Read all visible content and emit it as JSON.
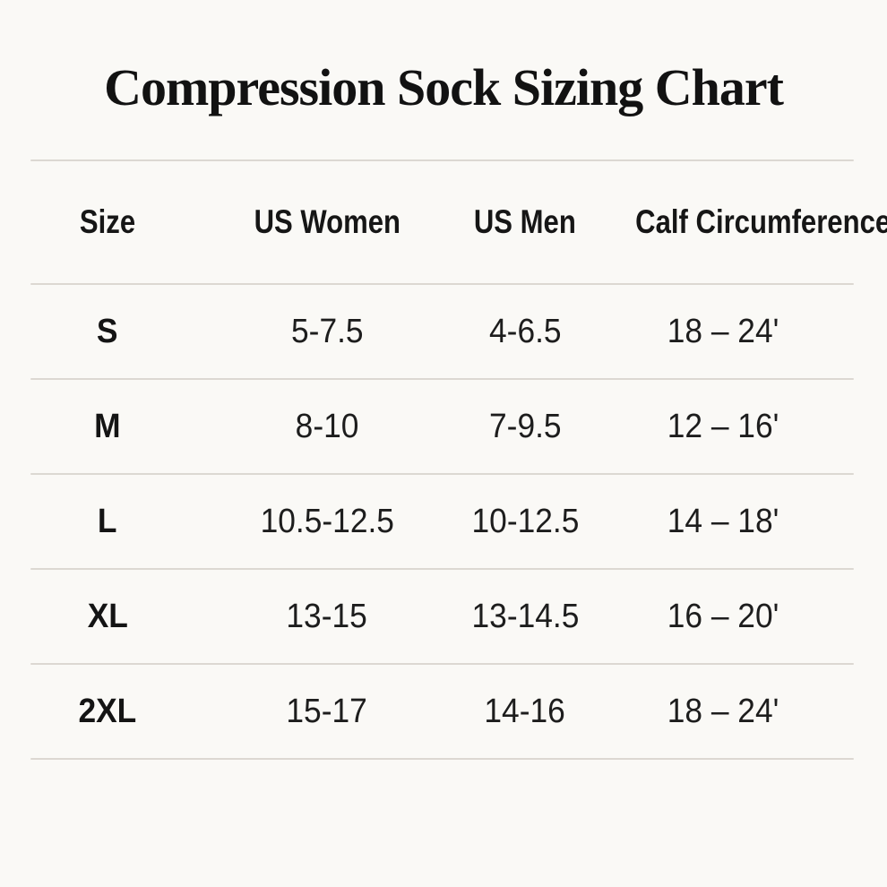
{
  "colors": {
    "background": "#faf9f6",
    "text": "#1a1a1a",
    "divider": "#dcd8d2"
  },
  "title": "Compression Sock Sizing Chart",
  "table": {
    "columns": [
      "Size",
      "US Women",
      "US Men",
      "Calf Circumference"
    ],
    "rows": [
      {
        "size": "S",
        "us_women": "5-7.5",
        "us_men": "4-6.5",
        "calf": "18 – 24'"
      },
      {
        "size": "M",
        "us_women": "8-10",
        "us_men": "7-9.5",
        "calf": "12 – 16'"
      },
      {
        "size": "L",
        "us_women": "10.5-12.5",
        "us_men": "10-12.5",
        "calf": "14 – 18'"
      },
      {
        "size": "XL",
        "us_women": "13-15",
        "us_men": "13-14.5",
        "calf": "16 – 20'"
      },
      {
        "size": "2XL",
        "us_women": "15-17",
        "us_men": "14-16",
        "calf": "18 – 24'"
      }
    ]
  },
  "chart_data": {
    "type": "table",
    "title": "Compression Sock Sizing Chart",
    "columns": [
      "Size",
      "US Women",
      "US Men",
      "Calf Circumference"
    ],
    "rows": [
      [
        "S",
        "5-7.5",
        "4-6.5",
        "18 – 24'"
      ],
      [
        "M",
        "8-10",
        "7-9.5",
        "12 – 16'"
      ],
      [
        "L",
        "10.5-12.5",
        "10-12.5",
        "14 – 18'"
      ],
      [
        "XL",
        "13-15",
        "13-14.5",
        "16 – 20'"
      ],
      [
        "2XL",
        "15-17",
        "14-16",
        "18 – 24'"
      ]
    ]
  }
}
